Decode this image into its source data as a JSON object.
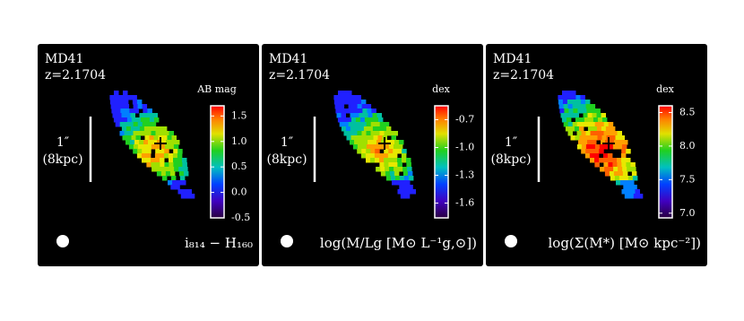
{
  "panels": [
    {
      "name": "MD41",
      "redshift": "z=2.1704",
      "unit": "AB mag",
      "scale_top": "1″",
      "scale_bottom": "(8kpc)",
      "label": "i₈₁₄ − H₁₆₀",
      "clim": [
        -0.5,
        1.7
      ],
      "ticks": [
        1.5,
        {
          "value": 1,
          "label": "1.0"
        },
        0.5,
        {
          "value": 0,
          "label": "0.0"
        },
        -0.5
      ]
    },
    {
      "name": "MD41",
      "redshift": "z=2.1704",
      "unit": "dex",
      "scale_top": "1″",
      "scale_bottom": "(8kpc)",
      "label": "log(M/Lg [M⊙ L⁻¹g,⊙])",
      "clim": [
        -1.76,
        -0.55
      ],
      "ticks": [
        -0.7,
        {
          "value": -1,
          "label": "-1.0"
        },
        -1.3,
        -1.6
      ]
    },
    {
      "name": "MD41",
      "redshift": "z=2.1704",
      "unit": "dex",
      "scale_top": "1″",
      "scale_bottom": "(8kpc)",
      "label": "log(Σ(M*) [M⊙ kpc⁻²])",
      "clim": [
        6.93,
        8.6
      ],
      "ticks": [
        8.5,
        {
          "value": 8,
          "label": "8.0"
        },
        7.5,
        {
          "value": 7,
          "label": "7.0"
        }
      ]
    }
  ]
}
